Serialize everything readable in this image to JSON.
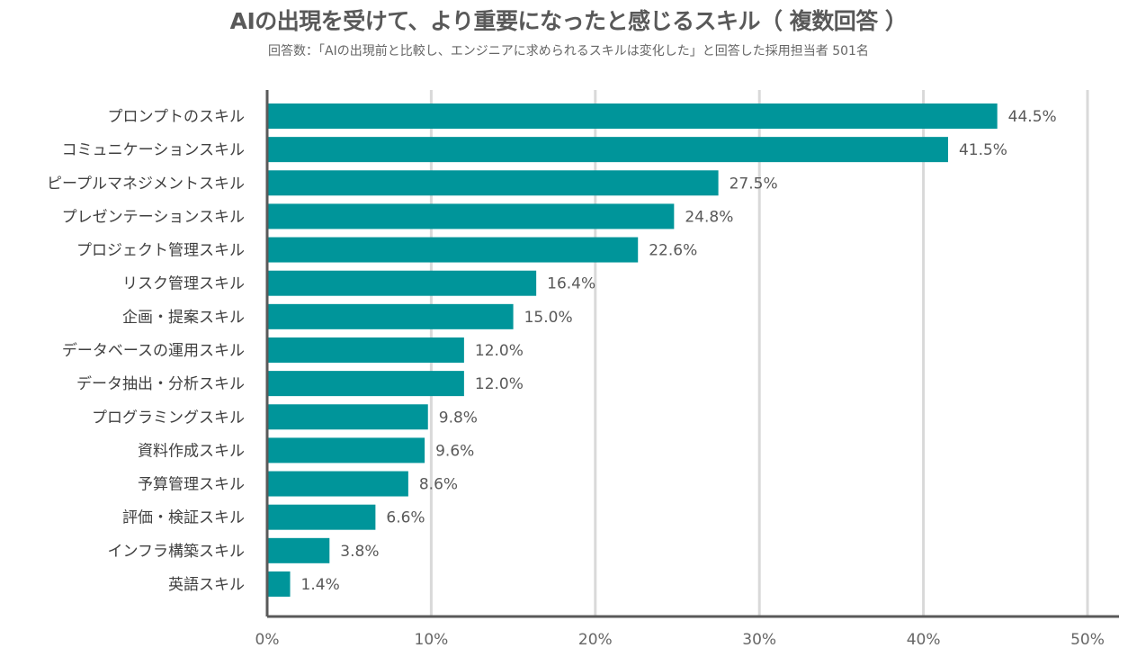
{
  "chart_data": {
    "type": "bar",
    "orientation": "horizontal",
    "title": "AIの出現を受けて、より重要になったと感じるスキル（ 複数回答 ）",
    "subtitle": "回答数：「AIの出現前と比較し、エンジニアに求められるスキルは変化した」と回答した採用担当者 501名",
    "categories": [
      "プロンプトのスキル",
      "コミュニケーションスキル",
      "ピープルマネジメントスキル",
      "プレゼンテーションスキル",
      "プロジェクト管理スキル",
      "リスク管理スキル",
      "企画・提案スキル",
      "データベースの運用スキル",
      "データ抽出・分析スキル",
      "プログラミングスキル",
      "資料作成スキル",
      "予算管理スキル",
      "評価・検証スキル",
      "インフラ構築スキル",
      "英語スキル"
    ],
    "values": [
      44.5,
      41.5,
      27.5,
      24.8,
      22.6,
      16.4,
      15.0,
      12.0,
      12.0,
      9.8,
      9.6,
      8.6,
      6.6,
      3.8,
      1.4
    ],
    "data_labels": [
      "44.5%",
      "41.5%",
      "27.5%",
      "24.8%",
      "22.6%",
      "16.4%",
      "15.0%",
      "12.0%",
      "12.0%",
      "9.8%",
      "9.6%",
      "8.6%",
      "6.6%",
      "3.8%",
      "1.4%"
    ],
    "xlim": [
      0,
      50
    ],
    "x_ticks": [
      "0%",
      "10%",
      "20%",
      "30%",
      "40%",
      "50%"
    ],
    "grid": true,
    "bar_color": "#00959a",
    "xlabel": "",
    "ylabel": ""
  }
}
